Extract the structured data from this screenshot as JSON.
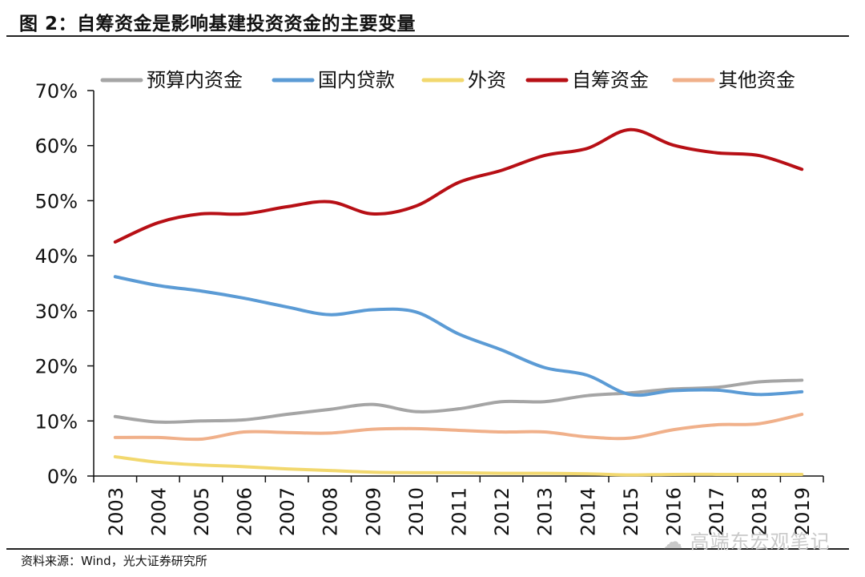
{
  "header": {
    "title": "图 2：自筹资金是影响基建投资资金的主要变量"
  },
  "footer": {
    "source": "资料来源：Wind，光大证券研究所",
    "watermark": "高端东宏观笔记"
  },
  "chart_data": {
    "type": "line",
    "title": "图 2：自筹资金是影响基建投资资金的主要变量",
    "xlabel": "",
    "ylabel": "",
    "x": [
      "2003",
      "2004",
      "2005",
      "2006",
      "2007",
      "2008",
      "2009",
      "2010",
      "2011",
      "2012",
      "2013",
      "2014",
      "2015",
      "2016",
      "2017",
      "2018",
      "2019"
    ],
    "ylim": [
      0,
      70
    ],
    "yticks": [
      0,
      10,
      20,
      30,
      40,
      50,
      60,
      70
    ],
    "ytick_labels": [
      "0%",
      "10%",
      "20%",
      "30%",
      "40%",
      "50%",
      "60%",
      "70%"
    ],
    "grid": false,
    "legend_position": "top",
    "series": [
      {
        "name": "预算内资金",
        "color": "#a5a5a5",
        "values": [
          10.8,
          9.8,
          10.0,
          10.2,
          11.2,
          12.1,
          13.0,
          11.7,
          12.2,
          13.5,
          13.5,
          14.6,
          15.1,
          15.8,
          16.1,
          17.1,
          17.4
        ]
      },
      {
        "name": "国内贷款",
        "color": "#5b9bd5",
        "values": [
          36.2,
          34.6,
          33.6,
          32.3,
          30.7,
          29.3,
          30.2,
          29.8,
          25.8,
          22.9,
          19.7,
          18.3,
          14.8,
          15.5,
          15.6,
          14.8,
          15.3
        ]
      },
      {
        "name": "外资",
        "color": "#f2d86e",
        "values": [
          3.5,
          2.5,
          2.0,
          1.7,
          1.3,
          1.0,
          0.7,
          0.6,
          0.6,
          0.5,
          0.5,
          0.4,
          0.2,
          0.3,
          0.3,
          0.3,
          0.3
        ]
      },
      {
        "name": "自筹资金",
        "color": "#b70f15",
        "values": [
          42.5,
          46.0,
          47.6,
          47.6,
          48.9,
          49.8,
          47.6,
          49.0,
          53.3,
          55.5,
          58.2,
          59.5,
          62.9,
          60.1,
          58.7,
          58.2,
          55.7
        ]
      },
      {
        "name": "其他资金",
        "color": "#f0b08a",
        "values": [
          7.0,
          7.0,
          6.7,
          8.0,
          7.9,
          7.8,
          8.5,
          8.6,
          8.3,
          8.0,
          8.0,
          7.1,
          6.9,
          8.4,
          9.3,
          9.5,
          11.2
        ]
      }
    ]
  }
}
